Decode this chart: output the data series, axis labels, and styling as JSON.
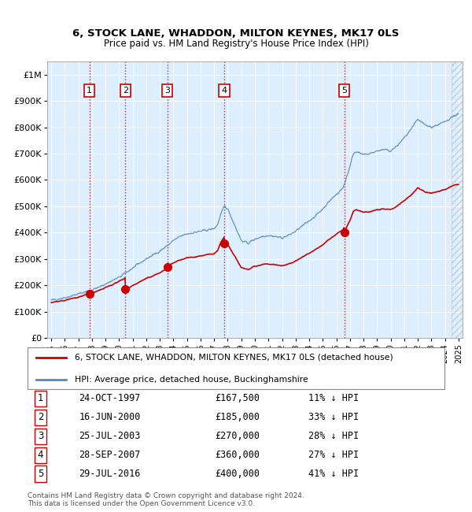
{
  "title": "6, STOCK LANE, WHADDON, MILTON KEYNES, MK17 0LS",
  "subtitle": "Price paid vs. HM Land Registry's House Price Index (HPI)",
  "transactions": [
    {
      "num": 1,
      "date": "24-OCT-1997",
      "year": 1997.81,
      "price": 167500,
      "pct": "11% ↓ HPI"
    },
    {
      "num": 2,
      "date": "16-JUN-2000",
      "year": 2000.46,
      "price": 185000,
      "pct": "33% ↓ HPI"
    },
    {
      "num": 3,
      "date": "25-JUL-2003",
      "year": 2003.56,
      "price": 270000,
      "pct": "28% ↓ HPI"
    },
    {
      "num": 4,
      "date": "28-SEP-2007",
      "year": 2007.74,
      "price": 360000,
      "pct": "27% ↓ HPI"
    },
    {
      "num": 5,
      "date": "29-JUL-2016",
      "year": 2016.58,
      "price": 400000,
      "pct": "41% ↓ HPI"
    }
  ],
  "hpi_color": "#5588bb",
  "price_color": "#cc0000",
  "dashed_color": "#cc0000",
  "background_color": "#ddeeff",
  "ylim": [
    0,
    1050000
  ],
  "xlim_start": 1994.7,
  "xlim_end": 2025.3,
  "footer": "Contains HM Land Registry data © Crown copyright and database right 2024.\nThis data is licensed under the Open Government Licence v3.0.",
  "legend_label_red": "6, STOCK LANE, WHADDON, MILTON KEYNES, MK17 0LS (detached house)",
  "legend_label_blue": "HPI: Average price, detached house, Buckinghamshire",
  "hpi_keypoints_x": [
    1995,
    1995.5,
    1996,
    1996.5,
    1997,
    1997.5,
    1998,
    1998.5,
    1999,
    1999.5,
    2000,
    2000.5,
    2001,
    2001.5,
    2002,
    2002.5,
    2003,
    2003.5,
    2004,
    2004.5,
    2005,
    2005.5,
    2006,
    2006.5,
    2007,
    2007.25,
    2007.5,
    2007.75,
    2008,
    2008.5,
    2009,
    2009.5,
    2010,
    2010.5,
    2011,
    2011.5,
    2012,
    2012.5,
    2013,
    2013.5,
    2014,
    2014.5,
    2015,
    2015.5,
    2016,
    2016.5,
    2017,
    2017.25,
    2017.5,
    2017.75,
    2018,
    2018.5,
    2019,
    2019.5,
    2020,
    2020.5,
    2021,
    2021.5,
    2022,
    2022.5,
    2023,
    2023.5,
    2024,
    2024.5,
    2025
  ],
  "hpi_keypoints_y": [
    143000,
    148000,
    153000,
    160000,
    167000,
    175000,
    183000,
    192000,
    205000,
    218000,
    230000,
    248000,
    265000,
    283000,
    300000,
    315000,
    330000,
    348000,
    370000,
    385000,
    395000,
    400000,
    405000,
    410000,
    415000,
    430000,
    470000,
    500000,
    490000,
    430000,
    370000,
    360000,
    375000,
    385000,
    390000,
    385000,
    380000,
    390000,
    405000,
    425000,
    445000,
    465000,
    490000,
    520000,
    545000,
    570000,
    650000,
    700000,
    710000,
    700000,
    695000,
    700000,
    710000,
    715000,
    710000,
    730000,
    760000,
    790000,
    830000,
    810000,
    800000,
    810000,
    820000,
    840000,
    850000
  ]
}
